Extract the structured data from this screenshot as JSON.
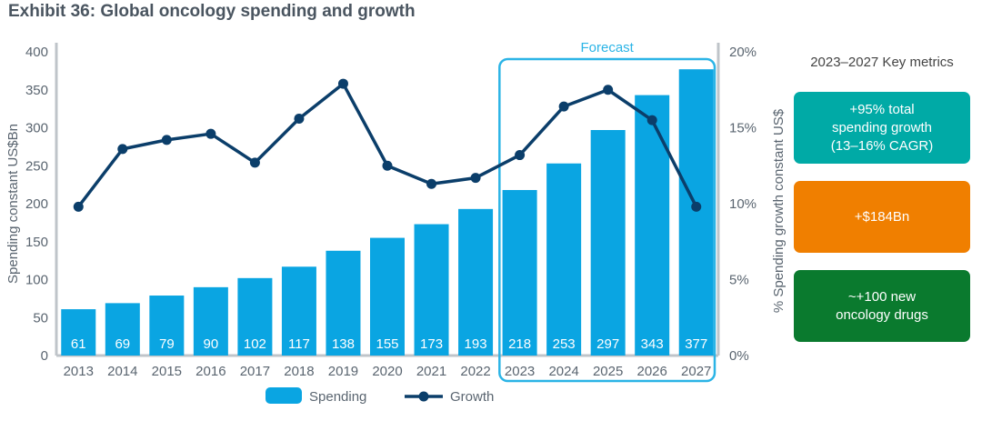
{
  "title": "Exhibit 36: Global oncology spending and growth",
  "chart_data": {
    "type": "bar+line",
    "categories": [
      "2013",
      "2014",
      "2015",
      "2016",
      "2017",
      "2018",
      "2019",
      "2020",
      "2021",
      "2022",
      "2023",
      "2024",
      "2025",
      "2026",
      "2027"
    ],
    "series": [
      {
        "name": "Spending",
        "type": "bar",
        "axis": "left",
        "values": [
          61,
          69,
          79,
          90,
          102,
          117,
          138,
          155,
          173,
          193,
          218,
          253,
          297,
          343,
          377
        ]
      },
      {
        "name": "Growth",
        "type": "line",
        "axis": "right",
        "values": [
          9.8,
          13.6,
          14.2,
          14.6,
          12.7,
          15.6,
          17.9,
          12.5,
          11.3,
          11.7,
          13.2,
          16.4,
          17.5,
          15.5,
          9.8
        ]
      }
    ],
    "value_labels": [
      "61",
      "69",
      "79",
      "90",
      "102",
      "117",
      "138",
      "155",
      "173",
      "193",
      "218",
      "253",
      "297",
      "343",
      "377"
    ],
    "ylabel": "Spending constant US$Bn",
    "y2label": "% Spending growth constant US$",
    "ylim": [
      0,
      400
    ],
    "y2lim": [
      0,
      20
    ],
    "yticks": [
      "0",
      "50",
      "100",
      "150",
      "200",
      "250",
      "300",
      "350",
      "400"
    ],
    "y2ticks": [
      "0%",
      "5%",
      "10%",
      "15%",
      "20%"
    ],
    "forecast_label": "Forecast",
    "forecast_start": "2023",
    "legend": {
      "position": "bottom",
      "spending": "Spending",
      "growth": "Growth"
    },
    "colors": {
      "bar": "#0aa5e2",
      "line": "#0b3e6a",
      "forecast_box": "#2bb4e6",
      "axis_text": "#5a6570"
    }
  },
  "metrics": {
    "heading": "2023–2027 Key metrics",
    "boxes": [
      {
        "lines": [
          "+95% total",
          "spending growth",
          "(13–16% CAGR)"
        ],
        "color": "#00aaa6"
      },
      {
        "lines": [
          "+$184Bn"
        ],
        "color": "#f07f00"
      },
      {
        "lines": [
          "~+100 new",
          "oncology drugs"
        ],
        "color": "#0a7a2e"
      }
    ]
  }
}
